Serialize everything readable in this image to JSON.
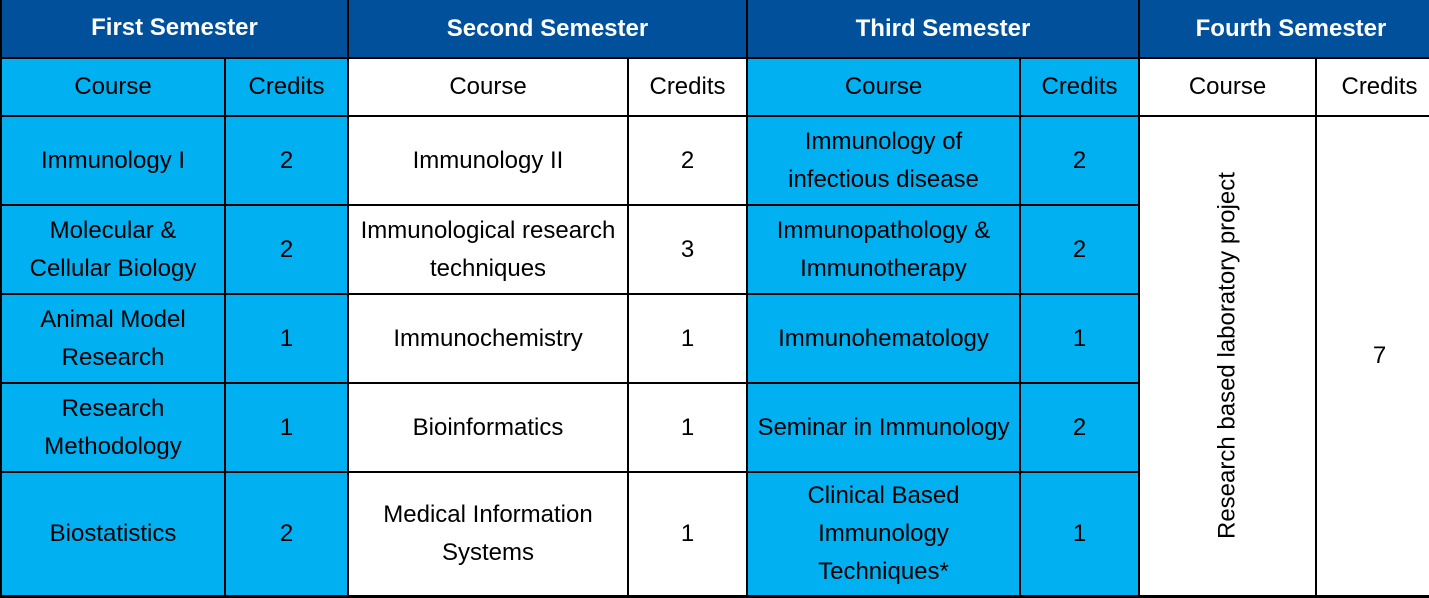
{
  "semesters": [
    {
      "title": "First Semester"
    },
    {
      "title": "Second Semester"
    },
    {
      "title": "Third  Semester"
    },
    {
      "title": "Fourth Semester"
    }
  ],
  "column_headers": {
    "course": "Course",
    "credits": "Credits"
  },
  "first": [
    {
      "course": "Immunology I",
      "credits": "2"
    },
    {
      "course": "Molecular & Cellular Biology",
      "credits": "2"
    },
    {
      "course": "Animal Model Research",
      "credits": "1"
    },
    {
      "course": "Research Methodology",
      "credits": "1"
    },
    {
      "course": "Biostatistics",
      "credits": "2"
    }
  ],
  "second": [
    {
      "course": "Immunology II",
      "credits": "2"
    },
    {
      "course": "Immunological research techniques",
      "credits": "3"
    },
    {
      "course": "Immunochemistry",
      "credits": "1"
    },
    {
      "course": "Bioinformatics",
      "credits": "1"
    },
    {
      "course": "Medical Information Systems",
      "credits": "1"
    }
  ],
  "third": [
    {
      "course": "Immunology of infectious disease",
      "credits": "2"
    },
    {
      "course": "Immunopathology & Immunotherapy",
      "credits": "2"
    },
    {
      "course": "Immunohematology",
      "credits": "1"
    },
    {
      "course": "Seminar in Immunology",
      "credits": "2"
    },
    {
      "course": "Clinical Based Immunology Techniques*",
      "credits": "1"
    }
  ],
  "fourth": {
    "course": "Research based laboratory project",
    "credits": "7"
  },
  "colors": {
    "header_blue": "#00509b",
    "cyan": "#00b0f0",
    "white": "#ffffff",
    "border": "#000000"
  }
}
